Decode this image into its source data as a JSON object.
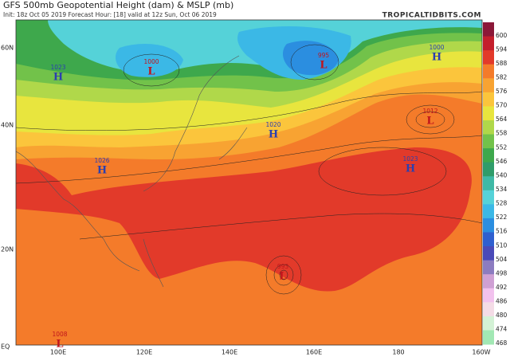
{
  "header": {
    "title": "GFS 500mb Geopotential Height (dam) & MSLP (mb)",
    "subtitle": "Init: 18z Oct 05 2019   Forecast Hour: [18]   valid at 12z Sun, Oct 06 2019",
    "site": "TROPICALTIDBITS.COM"
  },
  "axes": {
    "lat": [
      "60N",
      "40N",
      "20N",
      "EQ"
    ],
    "lon": [
      "100E",
      "120E",
      "140E",
      "160E",
      "180",
      "160W"
    ]
  },
  "colorbar": [
    {
      "value": 600,
      "color": "#8b1838"
    },
    {
      "value": 594,
      "color": "#c41f2c"
    },
    {
      "value": 588,
      "color": "#e23a2a"
    },
    {
      "value": 582,
      "color": "#f47b2a"
    },
    {
      "value": 576,
      "color": "#f8a332"
    },
    {
      "value": 570,
      "color": "#fbc53c"
    },
    {
      "value": 564,
      "color": "#e8e53e"
    },
    {
      "value": 558,
      "color": "#b0d84a"
    },
    {
      "value": 552,
      "color": "#72c24a"
    },
    {
      "value": 546,
      "color": "#3ea84c"
    },
    {
      "value": 540,
      "color": "#2f9c6a"
    },
    {
      "value": 534,
      "color": "#3fb9a6"
    },
    {
      "value": 528,
      "color": "#55d2d8"
    },
    {
      "value": 522,
      "color": "#3bb8e6"
    },
    {
      "value": 516,
      "color": "#2b8ee0"
    },
    {
      "value": 510,
      "color": "#2f5fcf"
    },
    {
      "value": 504,
      "color": "#4a4ab8"
    },
    {
      "value": 498,
      "color": "#8c7cc0"
    },
    {
      "value": 492,
      "color": "#cfa0d4"
    },
    {
      "value": 486,
      "color": "#f2c2ee"
    },
    {
      "value": 480,
      "color": "#f4dce6"
    },
    {
      "value": 474,
      "color": "#d4f2d6"
    },
    {
      "value": 468,
      "color": "#a2e8b4"
    }
  ],
  "centers": [
    {
      "type": "L",
      "pressure": "1000",
      "color": "#c0141c"
    },
    {
      "type": "L",
      "pressure": "995",
      "color": "#c0141c"
    },
    {
      "type": "H",
      "pressure": "1000",
      "color": "#2a3fb0"
    },
    {
      "type": "H",
      "pressure": "1023",
      "color": "#2a3fb0"
    },
    {
      "type": "H",
      "pressure": "1026",
      "color": "#2a3fb0"
    },
    {
      "type": "H",
      "pressure": "1020",
      "color": "#2a3fb0"
    },
    {
      "type": "L",
      "pressure": "1012",
      "color": "#c0141c"
    },
    {
      "type": "H",
      "pressure": "1023",
      "color": "#2a3fb0"
    },
    {
      "type": "L",
      "pressure": "993",
      "color": "#c0141c"
    },
    {
      "type": "L",
      "pressure": "1008",
      "color": "#c0141c"
    }
  ]
}
